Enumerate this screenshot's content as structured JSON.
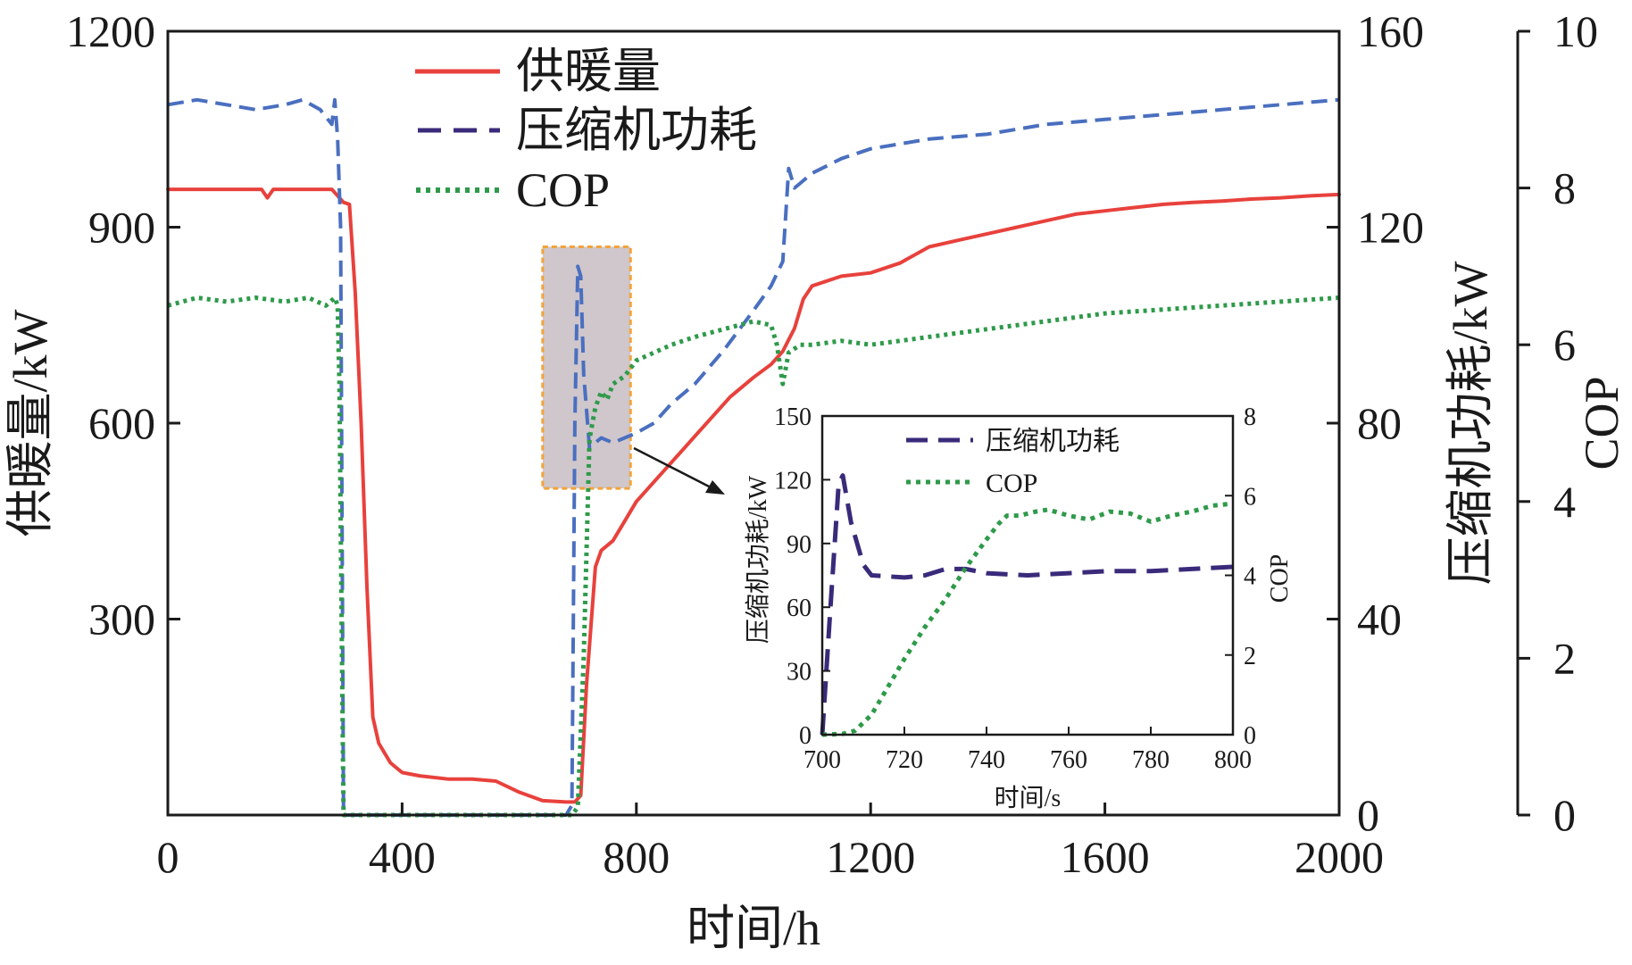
{
  "chart_data": [
    {
      "type": "line",
      "title": "",
      "xlabel": "时间/h",
      "ylabel_left": "供暖量/kW",
      "ylabel_right1": "压缩机功耗/kW",
      "ylabel_right2": "COP",
      "xlim": [
        0,
        2000
      ],
      "ylim_left": [
        0,
        1200
      ],
      "ylim_right1": [
        0,
        160
      ],
      "ylim_right2": [
        0,
        10
      ],
      "x_ticks": [
        "0",
        "400",
        "800",
        "1200",
        "1600",
        "2000"
      ],
      "y_left_ticks": [
        "1200",
        "900",
        "600",
        "300"
      ],
      "y_right1_ticks": [
        "160",
        "120",
        "80",
        "40",
        "0"
      ],
      "y_right2_ticks": [
        "10",
        "8",
        "6",
        "4",
        "2",
        "0"
      ],
      "legend_position": "top-left",
      "series": [
        {
          "name": "供暖量",
          "axis": "left",
          "style": "solid",
          "color": "#e8413c",
          "x": [
            0,
            160,
            170,
            180,
            280,
            300,
            310,
            320,
            330,
            340,
            350,
            360,
            380,
            400,
            430,
            480,
            520,
            560,
            600,
            640,
            680,
            695,
            705,
            715,
            730,
            740,
            760,
            780,
            800,
            820,
            850,
            880,
            900,
            930,
            960,
            1000,
            1030,
            1050,
            1070,
            1085,
            1100,
            1150,
            1200,
            1250,
            1300,
            1350,
            1400,
            1450,
            1500,
            1550,
            1600,
            1650,
            1700,
            1750,
            1800,
            1850,
            1900,
            1950,
            2000
          ],
          "values": [
            958,
            958,
            945,
            958,
            958,
            938,
            935,
            800,
            600,
            350,
            150,
            110,
            80,
            65,
            60,
            55,
            55,
            52,
            35,
            22,
            20,
            20,
            30,
            200,
            380,
            405,
            420,
            450,
            480,
            500,
            530,
            560,
            580,
            610,
            640,
            670,
            690,
            710,
            745,
            790,
            810,
            825,
            830,
            845,
            870,
            880,
            890,
            900,
            910,
            920,
            925,
            930,
            935,
            938,
            940,
            943,
            945,
            948,
            950
          ]
        },
        {
          "name": "压缩机功耗",
          "axis": "right1",
          "style": "dashed",
          "color": "#4a6fc0",
          "x": [
            0,
            50,
            100,
            150,
            200,
            230,
            260,
            280,
            285,
            290,
            295,
            300,
            680,
            690,
            695,
            700,
            705,
            710,
            720,
            740,
            760,
            780,
            800,
            830,
            860,
            900,
            950,
            1000,
            1030,
            1050,
            1060,
            1070,
            1080,
            1100,
            1150,
            1200,
            1300,
            1400,
            1500,
            1600,
            1700,
            1800,
            1900,
            2000
          ],
          "values": [
            145,
            146,
            145,
            144,
            145,
            146,
            144,
            141,
            146,
            138,
            120,
            0,
            0,
            2,
            80,
            112,
            110,
            90,
            75,
            77,
            76,
            77,
            78,
            80,
            84,
            88,
            95,
            103,
            108,
            113,
            132,
            128,
            129,
            131,
            134,
            136,
            138,
            139,
            141,
            142,
            143,
            144,
            145,
            146
          ]
        },
        {
          "name": "COP",
          "axis": "right2",
          "style": "dotted",
          "color": "#2e9a4a",
          "x": [
            0,
            50,
            100,
            150,
            200,
            240,
            270,
            285,
            290,
            293,
            296,
            300,
            690,
            700,
            710,
            720,
            730,
            740,
            750,
            760,
            780,
            800,
            830,
            860,
            900,
            950,
            1000,
            1030,
            1040,
            1050,
            1060,
            1080,
            1100,
            1150,
            1200,
            1300,
            1400,
            1500,
            1600,
            1700,
            1800,
            1900,
            2000
          ],
          "values": [
            6.5,
            6.6,
            6.55,
            6.6,
            6.55,
            6.6,
            6.5,
            6.6,
            6.5,
            5.5,
            3.0,
            0.0,
            0.0,
            0.1,
            2.0,
            4.8,
            5.2,
            5.4,
            5.3,
            5.5,
            5.6,
            5.8,
            5.9,
            6.0,
            6.1,
            6.2,
            6.3,
            6.25,
            6.0,
            5.5,
            5.9,
            6.0,
            6.0,
            6.05,
            6.0,
            6.1,
            6.2,
            6.3,
            6.4,
            6.45,
            6.5,
            6.55,
            6.6
          ]
        }
      ]
    },
    {
      "type": "line",
      "title": "",
      "xlabel": "时间/s",
      "ylabel_left": "压缩机功耗/kW",
      "ylabel_right": "COP",
      "xlim": [
        700,
        800
      ],
      "ylim_left": [
        0,
        150
      ],
      "ylim_right": [
        0,
        8
      ],
      "x_ticks": [
        "700",
        "720",
        "740",
        "760",
        "780",
        "800"
      ],
      "y_left_ticks": [
        "150",
        "120",
        "90",
        "60",
        "30",
        "0"
      ],
      "y_right_ticks": [
        "8",
        "6",
        "4",
        "2",
        "0"
      ],
      "legend_position": "top",
      "series": [
        {
          "name": "压缩机功耗",
          "axis": "left",
          "style": "dashed",
          "color": "#3a2a7a",
          "x": [
            700,
            702,
            704,
            705,
            707,
            710,
            712,
            720,
            725,
            730,
            735,
            740,
            750,
            760,
            770,
            780,
            790,
            800
          ],
          "values": [
            0,
            60,
            118,
            122,
            100,
            80,
            75,
            74,
            75,
            78,
            78,
            76,
            75,
            76,
            77,
            77,
            78,
            79
          ]
        },
        {
          "name": "COP",
          "axis": "right",
          "style": "dotted",
          "color": "#2e9a4a",
          "x": [
            700,
            705,
            708,
            712,
            716,
            720,
            725,
            730,
            735,
            740,
            743,
            745,
            748,
            752,
            755,
            760,
            765,
            770,
            775,
            780,
            785,
            790,
            795,
            800
          ],
          "values": [
            0,
            0.02,
            0.1,
            0.5,
            1.2,
            1.9,
            2.7,
            3.4,
            4.2,
            4.9,
            5.3,
            5.5,
            5.5,
            5.6,
            5.65,
            5.5,
            5.4,
            5.6,
            5.55,
            5.35,
            5.5,
            5.6,
            5.75,
            5.8
          ]
        }
      ]
    }
  ],
  "highlight_box": {
    "x_range": [
      640,
      790
    ],
    "y_left_range": [
      500,
      870
    ]
  },
  "colors": {
    "axis": "#1a1a1a",
    "box_fill": "#cfc7cb",
    "box_stroke": "#f2a33a"
  }
}
